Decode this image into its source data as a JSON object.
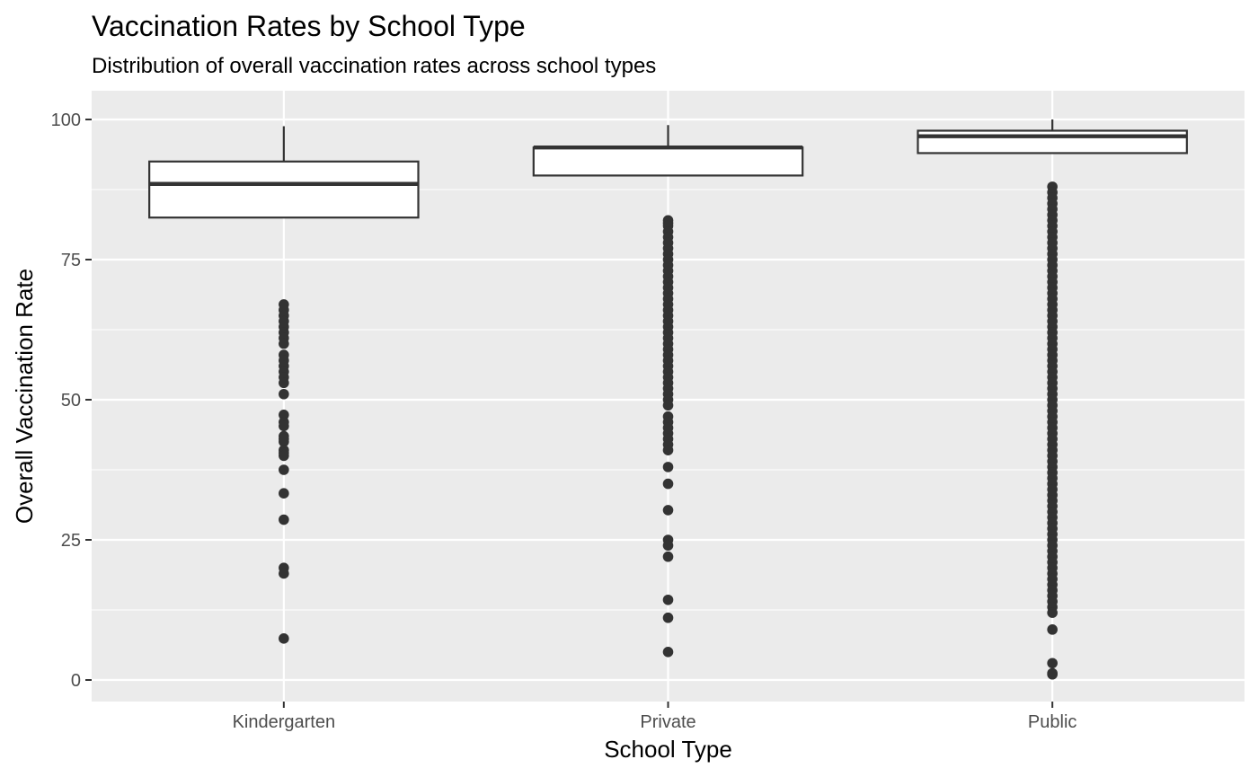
{
  "chart_data": {
    "type": "boxplot",
    "title": "Vaccination Rates by School Type",
    "subtitle": "Distribution of overall vaccination rates across school types",
    "xlabel": "School Type",
    "ylabel": "Overall Vaccination Rate",
    "ylim": [
      -4,
      104
    ],
    "yticks": [
      0,
      25,
      50,
      75,
      100
    ],
    "grid": true,
    "colors": {
      "panel": "#ebebeb",
      "grid": "#ffffff",
      "box_fill": "#ffffff",
      "box_line": "#333333",
      "point": "#333333"
    },
    "categories": [
      "Kindergarten",
      "Private",
      "Public"
    ],
    "boxes": [
      {
        "category": "Kindergarten",
        "whisker_low": 82.5,
        "q1": 82.5,
        "median": 88.5,
        "q3": 92.5,
        "whisker_high": 98.8,
        "outliers": [
          67,
          66,
          65,
          64,
          63,
          62,
          61,
          60,
          58,
          57,
          56,
          55,
          54,
          53,
          51,
          47.3,
          46,
          45.3,
          43.5,
          43,
          42.5,
          41,
          40.5,
          40,
          37.5,
          33.3,
          28.6,
          20,
          19,
          7.4
        ]
      },
      {
        "category": "Private",
        "whisker_low": 90,
        "q1": 90,
        "median": 95,
        "q3": 95,
        "whisker_high": 99,
        "outliers": [
          82,
          81.5,
          81,
          80,
          79,
          78,
          77,
          76,
          75,
          74,
          73,
          72,
          71,
          70,
          69,
          68,
          67,
          66,
          65,
          64,
          63,
          62,
          61,
          60,
          59,
          58,
          57,
          56,
          55,
          54,
          53,
          52,
          51,
          50,
          49,
          47,
          46,
          45,
          44,
          43,
          42,
          41,
          38,
          35,
          30.3,
          25,
          24,
          22,
          14.3,
          11.1,
          5
        ]
      },
      {
        "category": "Public",
        "whisker_low": 94,
        "q1": 94,
        "median": 97,
        "q3": 98,
        "whisker_high": 100,
        "outliers": [
          88,
          87,
          86,
          85,
          84,
          83,
          82,
          81,
          80,
          79,
          78,
          77,
          76,
          75,
          74,
          73,
          72,
          71,
          70,
          69,
          68,
          67,
          66,
          65,
          64,
          63,
          62,
          61,
          60,
          59,
          58,
          57,
          56,
          55,
          54,
          53,
          52,
          51,
          50,
          49,
          48,
          47,
          46,
          45,
          44,
          43,
          42,
          41,
          40,
          39,
          38,
          37,
          36,
          35,
          34,
          33,
          32,
          31,
          30,
          29,
          28,
          27,
          26,
          25,
          24,
          23,
          22,
          21,
          20,
          19,
          18,
          17,
          16,
          15,
          14,
          13,
          12,
          9,
          3,
          1.2,
          1
        ]
      }
    ]
  }
}
